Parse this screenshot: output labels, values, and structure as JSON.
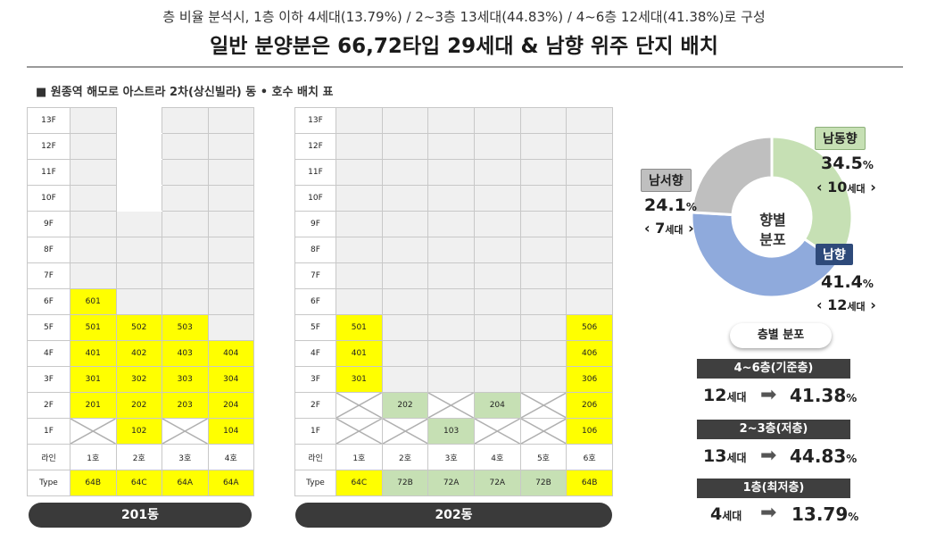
{
  "header": {
    "subtitle": "층 비율 분석시, 1층 이하 4세대(13.79%) / 2~3층 13세대(44.83%) / 4~6층 12세대(41.38%)로 구성",
    "title": "일반 분양분은 66,72타입 29세대 & 남향 위주 단지 배치"
  },
  "section_label": "■ 원종역 해모로 아스트라 2차(상신빌라) 동 • 호수 배치 표",
  "colors": {
    "highlight_yellow": "#ffff00",
    "highlight_green": "#c6e0b4",
    "empty_gray": "#f0f0f0",
    "dark_pill": "#3a3a3a"
  },
  "building201": {
    "name": "201동",
    "floors": [
      "13F",
      "12F",
      "11F",
      "10F",
      "9F",
      "8F",
      "7F",
      "6F",
      "5F",
      "4F",
      "3F",
      "2F",
      "1F"
    ],
    "lines": [
      "1호",
      "2호",
      "3호",
      "4호"
    ],
    "line_label": "라인",
    "type_label": "Type",
    "types": [
      "64B",
      "64C",
      "64A",
      "64A"
    ],
    "cells": [
      [
        "",
        "",
        "",
        ""
      ],
      [
        "",
        "",
        "",
        ""
      ],
      [
        "",
        "",
        "",
        ""
      ],
      [
        "",
        "",
        "",
        ""
      ],
      [
        "",
        "",
        "",
        ""
      ],
      [
        "",
        "",
        "",
        ""
      ],
      [
        "",
        "",
        "",
        ""
      ],
      [
        "601",
        "",
        "",
        ""
      ],
      [
        "501",
        "502",
        "503",
        ""
      ],
      [
        "401",
        "402",
        "403",
        "404"
      ],
      [
        "301",
        "302",
        "303",
        "304"
      ],
      [
        "201",
        "202",
        "203",
        "204"
      ],
      [
        "",
        "102",
        "",
        "104"
      ]
    ]
  },
  "building202": {
    "name": "202동",
    "floors": [
      "13F",
      "12F",
      "11F",
      "10F",
      "9F",
      "8F",
      "7F",
      "6F",
      "5F",
      "4F",
      "3F",
      "2F",
      "1F"
    ],
    "lines": [
      "1호",
      "2호",
      "3호",
      "4호",
      "5호",
      "6호"
    ],
    "line_label": "라인",
    "type_label": "Type",
    "types": [
      "64C",
      "72B",
      "72A",
      "72A",
      "72B",
      "64B"
    ],
    "cells": [
      [
        "",
        "",
        "",
        "",
        "",
        ""
      ],
      [
        "",
        "",
        "",
        "",
        "",
        ""
      ],
      [
        "",
        "",
        "",
        "",
        "",
        ""
      ],
      [
        "",
        "",
        "",
        "",
        "",
        ""
      ],
      [
        "",
        "",
        "",
        "",
        "",
        ""
      ],
      [
        "",
        "",
        "",
        "",
        "",
        ""
      ],
      [
        "",
        "",
        "",
        "",
        "",
        ""
      ],
      [
        "",
        "",
        "",
        "",
        "",
        ""
      ],
      [
        "501",
        "",
        "",
        "",
        "",
        "506"
      ],
      [
        "401",
        "",
        "",
        "",
        "",
        "406"
      ],
      [
        "301",
        "",
        "",
        "",
        "",
        "306"
      ],
      [
        "",
        "202",
        "",
        "204",
        "",
        "206"
      ],
      [
        "",
        "",
        "103",
        "",
        "",
        "106"
      ]
    ]
  },
  "chart_data": [
    {
      "type": "pie",
      "title": "향별 분포",
      "unit": "세대",
      "series": [
        {
          "name": "남동향",
          "value": 34.5,
          "count": 10,
          "color": "#c6e0b4"
        },
        {
          "name": "남향",
          "value": 41.4,
          "count": 12,
          "color": "#8faadc"
        },
        {
          "name": "남서향",
          "value": 24.1,
          "count": 7,
          "color": "#bfbfbf"
        }
      ]
    },
    {
      "type": "table",
      "title": "층별 분포",
      "rows": [
        {
          "label": "4~6층(기준층)",
          "count": 12,
          "percent": 41.38
        },
        {
          "label": "2~3층(저층)",
          "count": 13,
          "percent": 44.83
        },
        {
          "label": "1층(최저층)",
          "count": 4,
          "percent": 13.79
        }
      ]
    }
  ],
  "units": {
    "count_suffix": "세대",
    "percent_suffix": "%"
  }
}
